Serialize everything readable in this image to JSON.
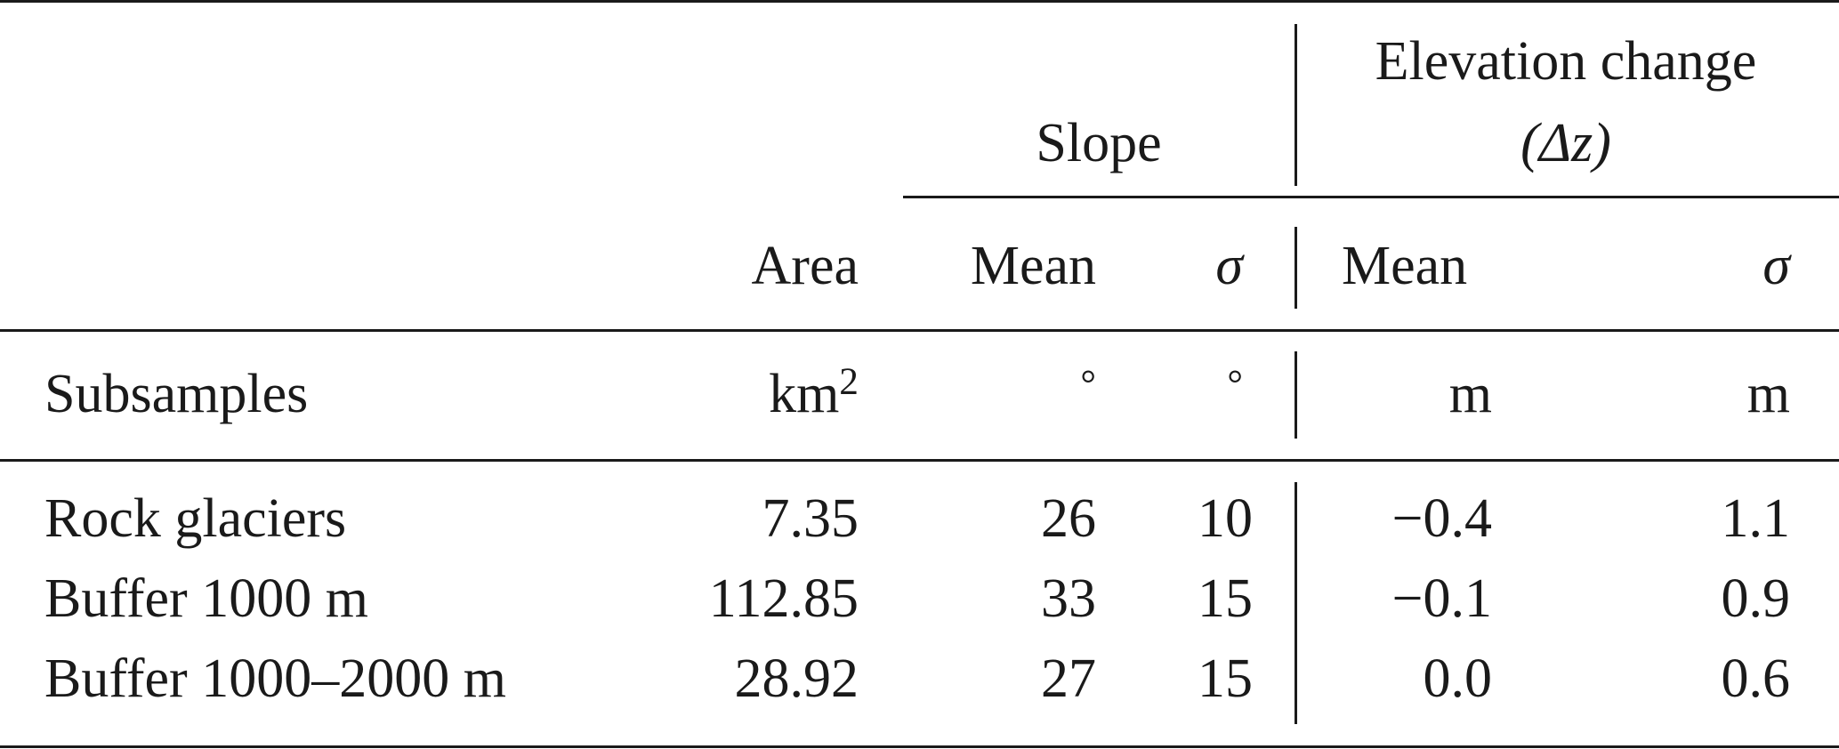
{
  "header": {
    "slope_group": "Slope",
    "elev_group_line1": "Elevation change",
    "elev_group_line2": "(Δz)",
    "col_area": "Area",
    "col_slope_mean": "Mean",
    "col_slope_sigma": "σ",
    "col_elev_mean": "Mean",
    "col_elev_sigma": "σ"
  },
  "units": {
    "row_label": "Subsamples",
    "area_base": "km",
    "area_exp": "2",
    "slope_mean": "°",
    "slope_sigma": "°",
    "elev_mean": "m",
    "elev_sigma": "m"
  },
  "rows": [
    {
      "label": "Rock glaciers",
      "area": "7.35",
      "slope_mean": "26",
      "slope_sigma": "10",
      "elev_mean": "−0.4",
      "elev_sigma": "1.1"
    },
    {
      "label": "Buffer 1000 m",
      "area": "112.85",
      "slope_mean": "33",
      "slope_sigma": "15",
      "elev_mean": "−0.1",
      "elev_sigma": "0.9"
    },
    {
      "label": "Buffer 1000–2000 m",
      "area": "28.92",
      "slope_mean": "27",
      "slope_sigma": "15",
      "elev_mean": "0.0",
      "elev_sigma": "0.6"
    }
  ]
}
